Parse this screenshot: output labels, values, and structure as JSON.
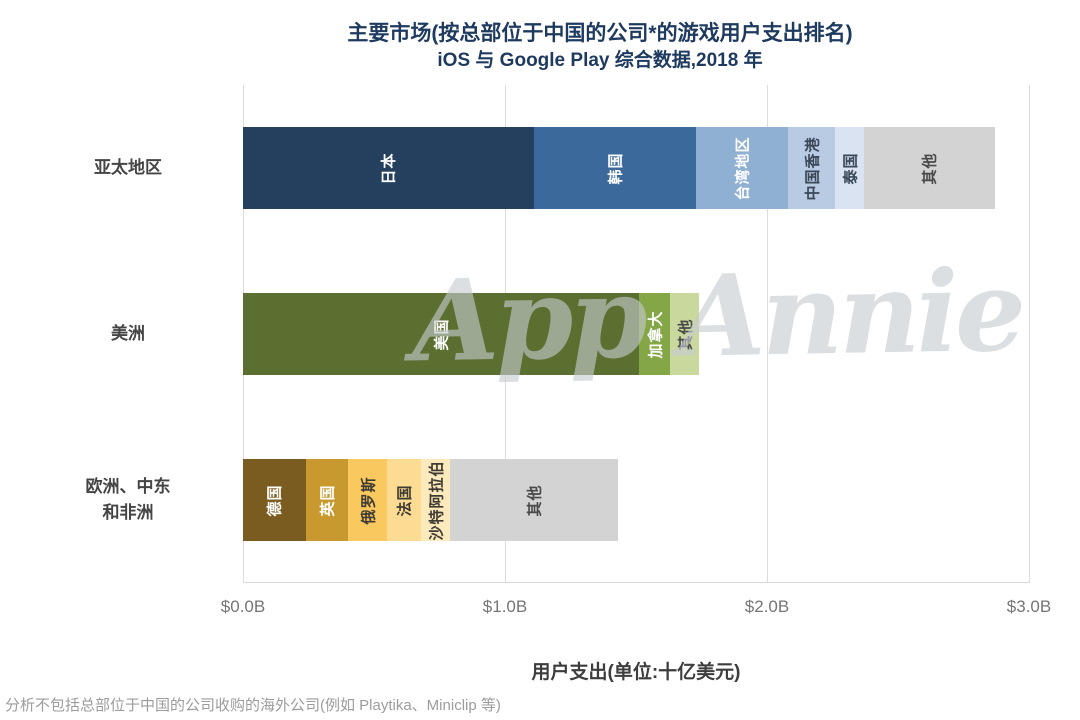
{
  "chart_data": {
    "type": "bar",
    "orientation": "horizontal-stacked",
    "title": "主要市场(按总部位于中国的公司*的游戏用户支出排名)",
    "subtitle": "iOS 与 Google Play 综合数据,2018 年",
    "xlabel": "用户支出(单位:十亿美元)",
    "x_ticks": [
      "$0.0B",
      "$1.0B",
      "$2.0B",
      "$3.0B"
    ],
    "xlim": [
      0,
      3
    ],
    "grid": true,
    "legend": "none",
    "unit": "billion USD",
    "categories": [
      "亚太地区",
      "美洲",
      "欧洲、中东和非洲"
    ],
    "rows": [
      {
        "category": "亚太地区",
        "category_lines": [
          "亚太地区"
        ],
        "total": 2.87,
        "segments": [
          {
            "label": "日本",
            "value": 1.11,
            "color": "#24405E",
            "label_color": "#FFFFFF"
          },
          {
            "label": "韩国",
            "value": 0.62,
            "color": "#3B699C",
            "label_color": "#FFFFFF"
          },
          {
            "label": "台湾地区",
            "value": 0.35,
            "color": "#8FAFD3",
            "label_color": "#FFFFFF"
          },
          {
            "label": "中国香港",
            "value": 0.18,
            "color": "#B9CAE3",
            "label_color": "#3A4758"
          },
          {
            "label": "泰国",
            "value": 0.11,
            "color": "#DAE3F1",
            "label_color": "#3A4758"
          },
          {
            "label": "其他",
            "value": 0.5,
            "color": "#D3D3D3",
            "label_color": "#4A4A4A"
          }
        ]
      },
      {
        "category": "美洲",
        "category_lines": [
          "美洲"
        ],
        "total": 1.74,
        "segments": [
          {
            "label": "美国",
            "value": 1.51,
            "color": "#5B7030",
            "label_color": "#FFFFFF"
          },
          {
            "label": "加拿大",
            "value": 0.12,
            "color": "#84A647",
            "label_color": "#FFFFFF"
          },
          {
            "label": "其他",
            "value": 0.11,
            "color": "#C9D99E",
            "label_color": "#4A4A4A"
          }
        ]
      },
      {
        "category": "欧洲、中东和非洲",
        "category_lines": [
          "欧洲、中东",
          "和非洲"
        ],
        "total": 1.43,
        "segments": [
          {
            "label": "德国",
            "value": 0.24,
            "color": "#7B5C20",
            "label_color": "#FFFFFF"
          },
          {
            "label": "英国",
            "value": 0.16,
            "color": "#C8992F",
            "label_color": "#FFFFFF"
          },
          {
            "label": "俄罗斯",
            "value": 0.15,
            "color": "#F9C95F",
            "label_color": "#3F3B33"
          },
          {
            "label": "法国",
            "value": 0.13,
            "color": "#FBDC92",
            "label_color": "#3F3B33"
          },
          {
            "label": "沙特阿拉伯",
            "value": 0.11,
            "color": "#FCEABD",
            "label_color": "#3F3B33"
          },
          {
            "label": "其他",
            "value": 0.64,
            "color": "#D3D3D3",
            "label_color": "#4A4A4A"
          }
        ]
      }
    ],
    "footnote": "分析不包括总部位于中国的公司收购的海外公司(例如 Playtika、Miniclip 等)",
    "watermark": "App Annie",
    "colors": {
      "title": "#1E3A5F",
      "gridline": "#DCDCDC",
      "tick_text": "#757575",
      "category_text": "#454545",
      "axis_title_text": "#3D3D3D",
      "footnote_text": "#9C9C9C",
      "watermark_text": "#C6CBD1"
    }
  }
}
